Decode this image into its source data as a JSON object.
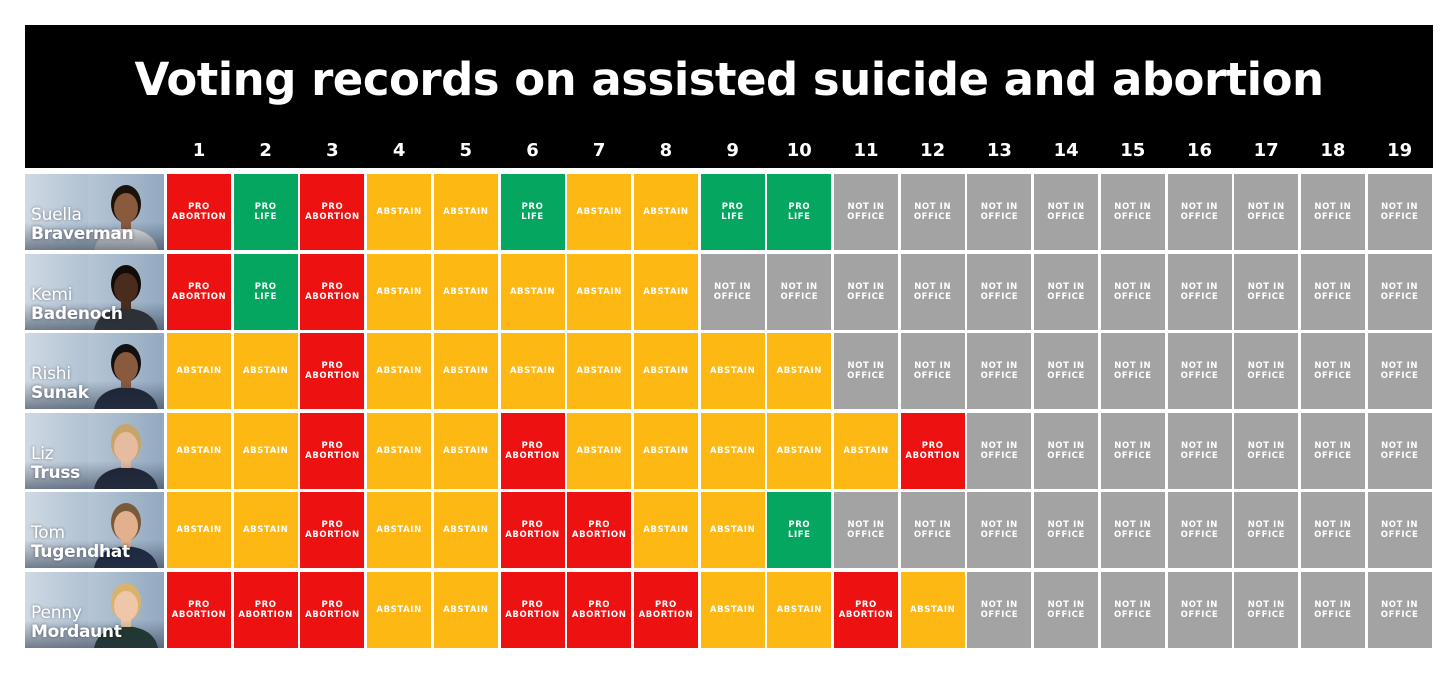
{
  "chart_data": {
    "type": "table",
    "title": "Voting records on assisted suicide and abortion",
    "columns": [
      "1",
      "2",
      "3",
      "4",
      "5",
      "6",
      "7",
      "8",
      "9",
      "10",
      "11",
      "12",
      "13",
      "14",
      "15",
      "16",
      "17",
      "18",
      "19"
    ],
    "labels": {
      "PA": "PRO\nABORTION",
      "PL": "PRO\nLIFE",
      "AB": "ABSTAIN",
      "NO": "NOT IN\nOFFICE"
    },
    "colors": {
      "PA": "#ee1111",
      "PL": "#05a660",
      "AB": "#fdb813",
      "NO": "#a3a3a3"
    },
    "rows": [
      {
        "first": "Suella",
        "last": "Braverman",
        "votes": [
          "PA",
          "PL",
          "PA",
          "AB",
          "AB",
          "PL",
          "AB",
          "AB",
          "PL",
          "PL",
          "NO",
          "NO",
          "NO",
          "NO",
          "NO",
          "NO",
          "NO",
          "NO",
          "NO"
        ]
      },
      {
        "first": "Kemi",
        "last": "Badenoch",
        "votes": [
          "PA",
          "PL",
          "PA",
          "AB",
          "AB",
          "AB",
          "AB",
          "AB",
          "NO",
          "NO",
          "NO",
          "NO",
          "NO",
          "NO",
          "NO",
          "NO",
          "NO",
          "NO",
          "NO"
        ]
      },
      {
        "first": "Rishi",
        "last": "Sunak",
        "votes": [
          "AB",
          "AB",
          "PA",
          "AB",
          "AB",
          "AB",
          "AB",
          "AB",
          "AB",
          "AB",
          "NO",
          "NO",
          "NO",
          "NO",
          "NO",
          "NO",
          "NO",
          "NO",
          "NO"
        ]
      },
      {
        "first": "Liz",
        "last": "Truss",
        "votes": [
          "AB",
          "AB",
          "PA",
          "AB",
          "AB",
          "PA",
          "AB",
          "AB",
          "AB",
          "AB",
          "AB",
          "PA",
          "NO",
          "NO",
          "NO",
          "NO",
          "NO",
          "NO",
          "NO"
        ]
      },
      {
        "first": "Tom",
        "last": "Tugendhat",
        "votes": [
          "AB",
          "AB",
          "PA",
          "AB",
          "AB",
          "PA",
          "PA",
          "AB",
          "AB",
          "PL",
          "NO",
          "NO",
          "NO",
          "NO",
          "NO",
          "NO",
          "NO",
          "NO",
          "NO"
        ]
      },
      {
        "first": "Penny",
        "last": "Mordaunt",
        "votes": [
          "PA",
          "PA",
          "PA",
          "AB",
          "AB",
          "PA",
          "PA",
          "PA",
          "AB",
          "AB",
          "PA",
          "AB",
          "NO",
          "NO",
          "NO",
          "NO",
          "NO",
          "NO",
          "NO"
        ]
      }
    ]
  }
}
